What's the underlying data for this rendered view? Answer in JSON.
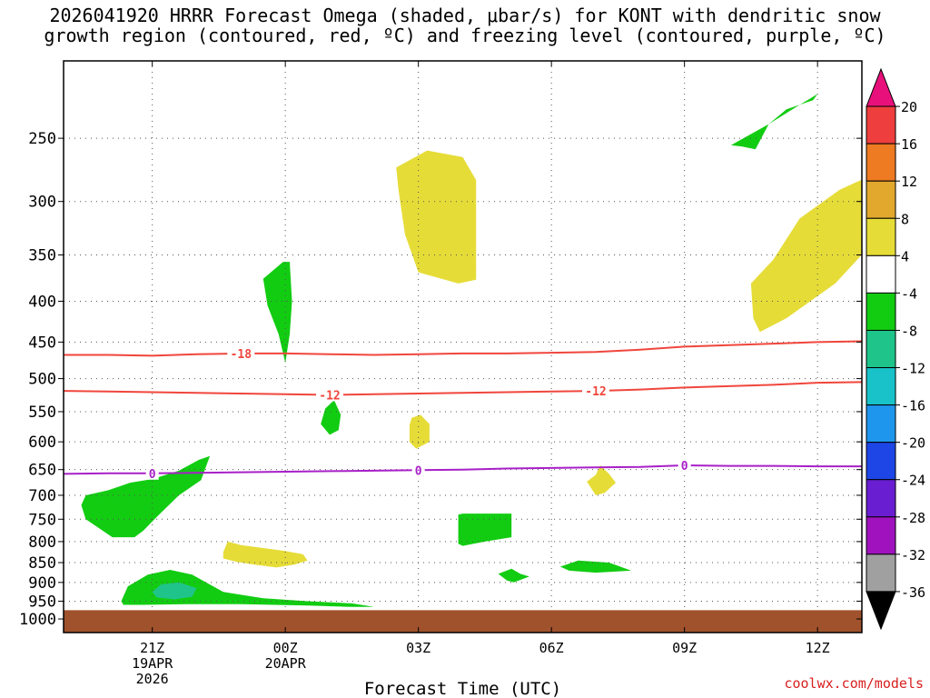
{
  "title": {
    "line1": "2026041920 HRRR Forecast Omega (shaded, μbar/s) for KONT with dendritic snow",
    "line2": "growth region (contoured, red, ºC) and freezing level (contoured, purple, ºC)"
  },
  "credit": "coolwx.com/models",
  "chart_data": {
    "type": "area",
    "subtype": "time-height cross section (filled contours + line contours)",
    "xlabel": "Forecast Time (UTC)",
    "ylabel": "",
    "x_units": "forecast hours from 2026041920",
    "xlim": [
      -1,
      17
    ],
    "y_scale": "log (pressure)",
    "ylim": [
      1040,
      200
    ],
    "y_ticks": [
      250,
      300,
      350,
      400,
      450,
      500,
      550,
      600,
      650,
      700,
      750,
      800,
      850,
      900,
      950,
      1000
    ],
    "y_tick_labels": [
      "250",
      "300",
      "350",
      "400",
      "450",
      "500",
      "550",
      "600",
      "650",
      "700",
      "750",
      "800",
      "850",
      "900",
      "950",
      "1000"
    ],
    "x_ticks": [
      {
        "x": 1,
        "lines": [
          "21Z",
          "19APR",
          "2026"
        ]
      },
      {
        "x": 4,
        "lines": [
          "00Z",
          "20APR"
        ]
      },
      {
        "x": 7,
        "lines": [
          "03Z"
        ]
      },
      {
        "x": 10,
        "lines": [
          "06Z"
        ]
      },
      {
        "x": 13,
        "lines": [
          "09Z"
        ]
      },
      {
        "x": 16,
        "lines": [
          "12Z"
        ]
      }
    ],
    "grid": true,
    "colorbar": {
      "position": "right",
      "labels": [
        "20",
        "16",
        "12",
        "8",
        "4",
        "-4",
        "-8",
        "-12",
        "-16",
        "-20",
        "-24",
        "-28",
        "-32",
        "-36"
      ],
      "bins": [
        {
          "color": "#e8107a",
          "type": "top-arrow"
        },
        {
          "color": "#ee3e3e"
        },
        {
          "color": "#ee7a22"
        },
        {
          "color": "#e2a82e"
        },
        {
          "color": "#e6dc38"
        },
        {
          "color": "#ffffff"
        },
        {
          "color": "#12cc12"
        },
        {
          "color": "#1ec48a"
        },
        {
          "color": "#18c2c8"
        },
        {
          "color": "#1e96ee"
        },
        {
          "color": "#1e46e6"
        },
        {
          "color": "#6a1ed2"
        },
        {
          "color": "#a012be"
        },
        {
          "color": "#a0a0a0"
        },
        {
          "color": "#000000",
          "type": "bottom-arrow"
        }
      ]
    },
    "colors": {
      "dgz": "#f0463c",
      "freezing": "#a820c8",
      "ground": "#a0522d",
      "green": "#12cc12",
      "teal": "#1ec48a",
      "yellow": "#e6dc38"
    },
    "ground": {
      "p_top": 975
    },
    "contours": [
      {
        "name": "-18",
        "color": "dgz",
        "label": "-18",
        "label_at": 3,
        "points": [
          [
            -1,
            467
          ],
          [
            0,
            467
          ],
          [
            1,
            468
          ],
          [
            2,
            466
          ],
          [
            3,
            465
          ],
          [
            4,
            465
          ],
          [
            5,
            466
          ],
          [
            6,
            467
          ],
          [
            7,
            466
          ],
          [
            8,
            465
          ],
          [
            9,
            465
          ],
          [
            10,
            464
          ],
          [
            11,
            463
          ],
          [
            12,
            460
          ],
          [
            13,
            456
          ],
          [
            14,
            454
          ],
          [
            15,
            452
          ],
          [
            16,
            450
          ],
          [
            17,
            449
          ]
        ]
      },
      {
        "name": "-12",
        "color": "dgz",
        "label": "-12",
        "label_at": 5,
        "label2_at": 11,
        "points": [
          [
            -1,
            518
          ],
          [
            0,
            519
          ],
          [
            1,
            520
          ],
          [
            2,
            521
          ],
          [
            3,
            522
          ],
          [
            4,
            523
          ],
          [
            5,
            524
          ],
          [
            6,
            523
          ],
          [
            7,
            522
          ],
          [
            8,
            521
          ],
          [
            9,
            520
          ],
          [
            10,
            519
          ],
          [
            11,
            518
          ],
          [
            12,
            516
          ],
          [
            13,
            513
          ],
          [
            14,
            511
          ],
          [
            15,
            509
          ],
          [
            16,
            506
          ],
          [
            17,
            505
          ]
        ]
      },
      {
        "name": "0",
        "color": "freezing",
        "label": "0",
        "label_at": 1,
        "label2_at": 7,
        "label3_at": 13,
        "points": [
          [
            -1,
            658
          ],
          [
            0,
            657
          ],
          [
            1,
            657
          ],
          [
            2,
            656
          ],
          [
            3,
            655
          ],
          [
            4,
            654
          ],
          [
            5,
            653
          ],
          [
            6,
            652
          ],
          [
            7,
            651
          ],
          [
            8,
            650
          ],
          [
            9,
            648
          ],
          [
            10,
            647
          ],
          [
            11,
            646
          ],
          [
            12,
            645
          ],
          [
            13,
            642
          ],
          [
            14,
            643
          ],
          [
            15,
            643
          ],
          [
            16,
            644
          ],
          [
            17,
            644
          ]
        ]
      }
    ],
    "regions": [
      {
        "color": "green",
        "points": [
          [
            14.05,
            255
          ],
          [
            14.9,
            240
          ],
          [
            15.6,
            227
          ],
          [
            16.0,
            220
          ],
          [
            15.9,
            224
          ],
          [
            15.3,
            230
          ],
          [
            14.9,
            240
          ],
          [
            14.6,
            258
          ],
          [
            14.3,
            256
          ]
        ]
      },
      {
        "color": "yellow",
        "points": [
          [
            6.5,
            272
          ],
          [
            7.2,
            259
          ],
          [
            8.0,
            264
          ],
          [
            8.3,
            282
          ],
          [
            8.3,
            376
          ],
          [
            7.9,
            380
          ],
          [
            7.0,
            368
          ],
          [
            6.7,
            330
          ],
          [
            6.55,
            290
          ]
        ]
      },
      {
        "color": "yellow",
        "points": [
          [
            14.5,
            380
          ],
          [
            15.0,
            355
          ],
          [
            15.6,
            315
          ],
          [
            16.5,
            290
          ],
          [
            17.1,
            280
          ],
          [
            17.3,
            298
          ],
          [
            17.1,
            345
          ],
          [
            16.4,
            380
          ],
          [
            15.3,
            420
          ],
          [
            14.7,
            437
          ],
          [
            14.55,
            420
          ]
        ]
      },
      {
        "color": "green",
        "points": [
          [
            3.5,
            375
          ],
          [
            3.95,
            357
          ],
          [
            4.1,
            357
          ],
          [
            4.15,
            400
          ],
          [
            4.1,
            440
          ],
          [
            4.0,
            478
          ],
          [
            3.85,
            440
          ],
          [
            3.6,
            405
          ]
        ]
      },
      {
        "color": "green",
        "points": [
          [
            4.8,
            570
          ],
          [
            4.9,
            545
          ],
          [
            5.1,
            532
          ],
          [
            5.25,
            555
          ],
          [
            5.2,
            580
          ],
          [
            5.0,
            588
          ]
        ]
      },
      {
        "color": "yellow",
        "points": [
          [
            6.8,
            572
          ],
          [
            6.85,
            560
          ],
          [
            7.05,
            555
          ],
          [
            7.25,
            570
          ],
          [
            7.25,
            600
          ],
          [
            6.95,
            612
          ],
          [
            6.8,
            600
          ]
        ]
      },
      {
        "color": "yellow",
        "points": [
          [
            10.8,
            673
          ],
          [
            11.0,
            660
          ],
          [
            11.1,
            642
          ],
          [
            11.3,
            658
          ],
          [
            11.45,
            675
          ],
          [
            11.2,
            695
          ],
          [
            11.0,
            700
          ]
        ]
      },
      {
        "color": "green",
        "points": [
          [
            -0.5,
            700
          ],
          [
            0,
            690
          ],
          [
            0.5,
            675
          ],
          [
            1.0,
            668
          ],
          [
            1.6,
            652
          ],
          [
            2.05,
            632
          ],
          [
            2.3,
            625
          ],
          [
            2.1,
            670
          ],
          [
            1.6,
            700
          ],
          [
            1.1,
            745
          ],
          [
            0.8,
            775
          ],
          [
            0.6,
            790
          ],
          [
            0.1,
            790
          ],
          [
            -0.5,
            750
          ],
          [
            -0.6,
            720
          ]
        ]
      },
      {
        "color": "yellow",
        "points": [
          [
            2.6,
            825
          ],
          [
            2.7,
            800
          ],
          [
            3.0,
            808
          ],
          [
            3.5,
            815
          ],
          [
            4.0,
            822
          ],
          [
            4.4,
            830
          ],
          [
            4.5,
            845
          ],
          [
            4.2,
            855
          ],
          [
            3.8,
            862
          ],
          [
            3.3,
            855
          ],
          [
            2.9,
            848
          ],
          [
            2.6,
            840
          ]
        ]
      },
      {
        "color": "green",
        "points": [
          [
            7.9,
            740
          ],
          [
            8.0,
            738
          ],
          [
            9.1,
            738
          ],
          [
            9.1,
            790
          ],
          [
            8.5,
            800
          ],
          [
            8.0,
            810
          ],
          [
            7.9,
            805
          ]
        ]
      },
      {
        "color": "green",
        "points": [
          [
            10.2,
            860
          ],
          [
            10.6,
            845
          ],
          [
            11.3,
            850
          ],
          [
            11.8,
            870
          ],
          [
            11.0,
            875
          ],
          [
            10.4,
            870
          ]
        ]
      },
      {
        "color": "green",
        "points": [
          [
            8.8,
            878
          ],
          [
            9.1,
            865
          ],
          [
            9.3,
            878
          ],
          [
            9.5,
            885
          ],
          [
            9.15,
            900
          ],
          [
            9.0,
            895
          ]
        ]
      },
      {
        "color": "green",
        "points": [
          [
            0.3,
            950
          ],
          [
            0.45,
            910
          ],
          [
            0.9,
            880
          ],
          [
            1.4,
            868
          ],
          [
            1.9,
            880
          ],
          [
            2.6,
            925
          ],
          [
            3.5,
            942
          ],
          [
            4.5,
            950
          ],
          [
            5.5,
            956
          ],
          [
            6.0,
            966
          ],
          [
            5.5,
            966
          ],
          [
            4.5,
            962
          ],
          [
            3.0,
            958
          ],
          [
            1.8,
            958
          ],
          [
            0.8,
            960
          ],
          [
            0.35,
            960
          ]
        ]
      },
      {
        "color": "teal",
        "points": [
          [
            1.0,
            925
          ],
          [
            1.2,
            905
          ],
          [
            1.6,
            900
          ],
          [
            2.0,
            915
          ],
          [
            1.9,
            938
          ],
          [
            1.5,
            945
          ],
          [
            1.1,
            940
          ]
        ]
      }
    ]
  }
}
